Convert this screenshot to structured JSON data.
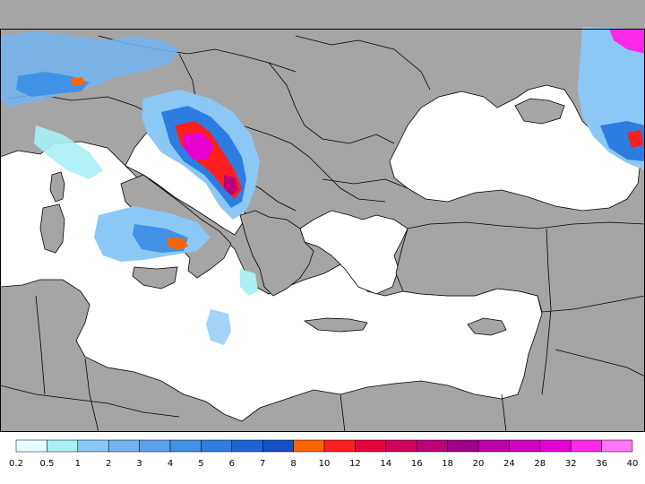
{
  "legend": {
    "colors": [
      "#e6ffff",
      "#aaf0f5",
      "#8cc8f5",
      "#73b4f0",
      "#5aa0eb",
      "#4191e6",
      "#2d7de1",
      "#1e64d2",
      "#1450c3",
      "#ff6400",
      "#ff1e1e",
      "#e6003c",
      "#d2005a",
      "#be0078",
      "#a0008c",
      "#be00aa",
      "#d200be",
      "#e600d2",
      "#ff28e6",
      "#ff78f5"
    ],
    "ticks": [
      "0.2",
      "0.5",
      "1",
      "2",
      "3",
      "4",
      "5",
      "6",
      "7",
      "8",
      "10",
      "12",
      "14",
      "16",
      "18",
      "20",
      "24",
      "28",
      "32",
      "36",
      "40"
    ]
  },
  "colors": {
    "land": "#a5a5a5",
    "sea": "#ffffff",
    "border": "#000000"
  }
}
